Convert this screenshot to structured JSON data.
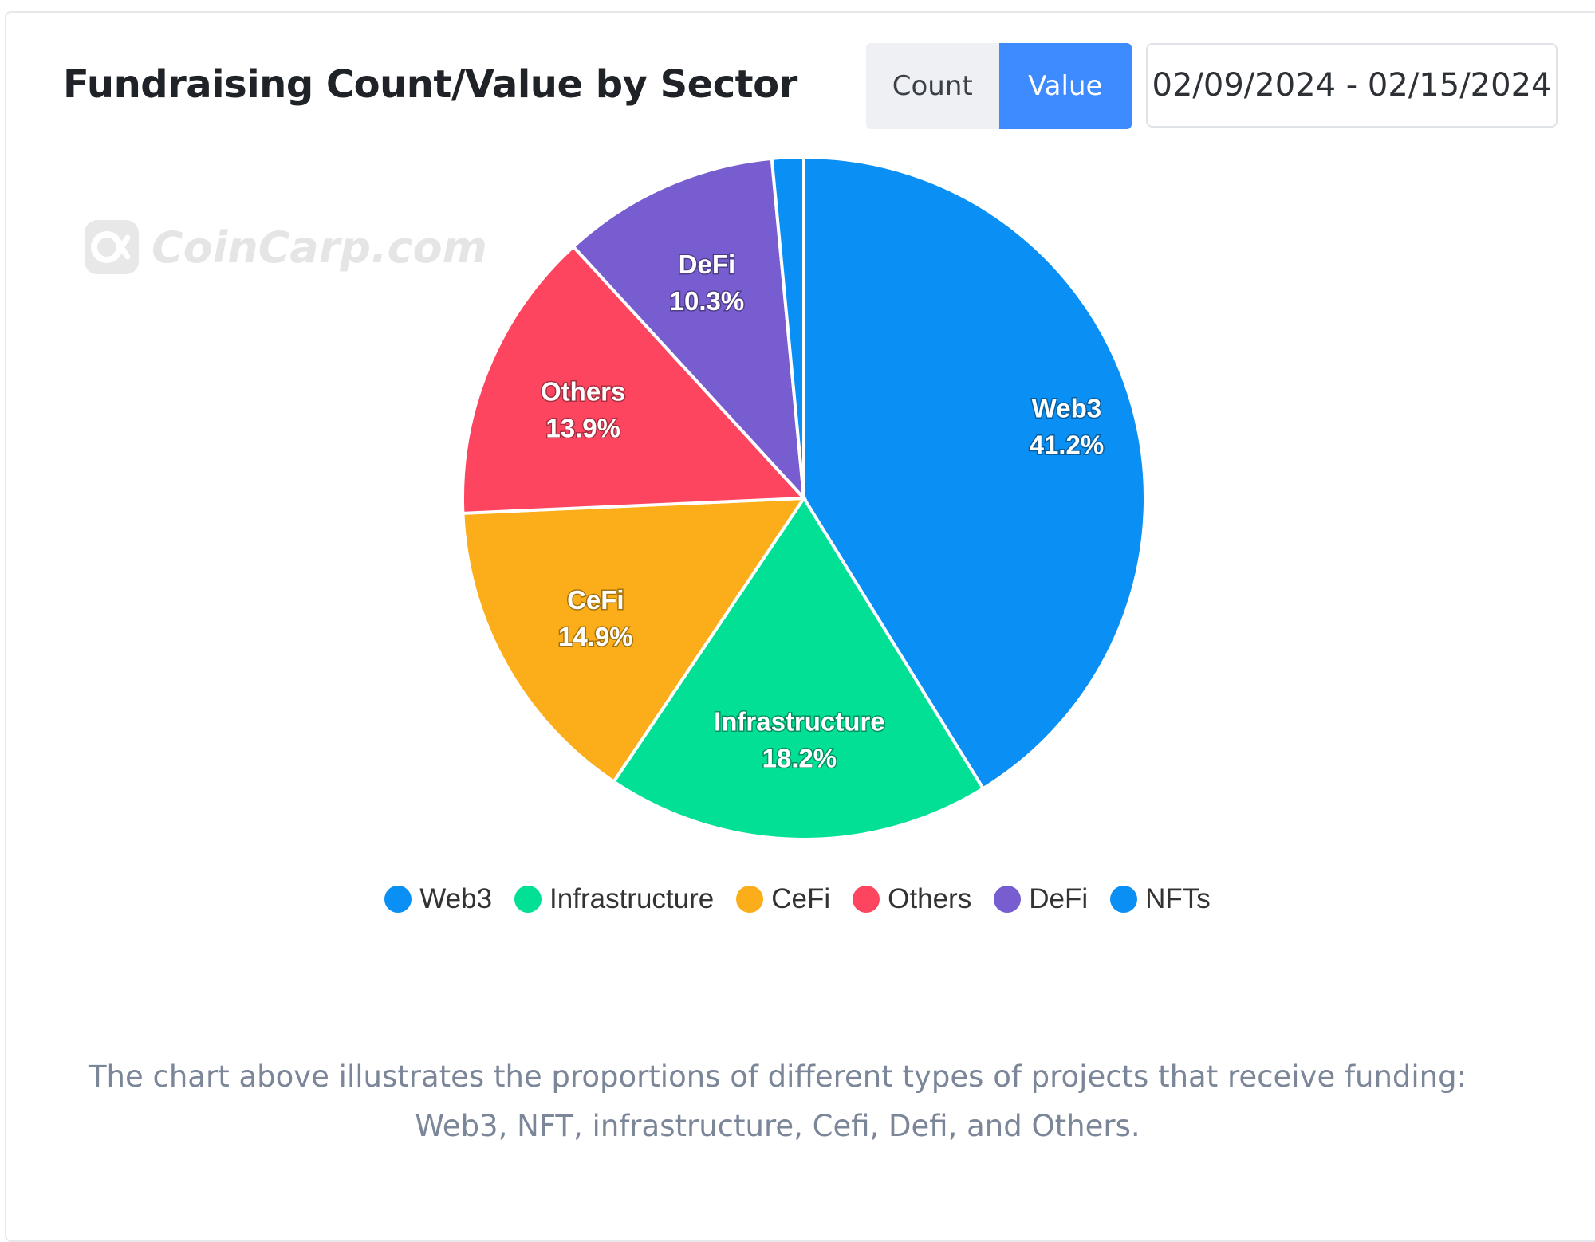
{
  "header": {
    "title": "Fundraising Count/Value by Sector",
    "toggle_count": "Count",
    "toggle_value": "Value",
    "date_range": "02/09/2024 - 02/15/2024"
  },
  "watermark": {
    "text": "CoinCarp.com"
  },
  "caption": "The chart above illustrates the proportions of different types of projects that receive funding: Web3, NFT, infrastructure, Cefi, Defi, and Others.",
  "colors": {
    "Web3": "#0a8ff5",
    "Infrastructure": "#02e096",
    "CeFi": "#fbae1a",
    "Others": "#fe4560",
    "DeFi": "#785dd0",
    "NFTs": "#0a8ff5"
  },
  "chart_data": {
    "type": "pie",
    "title": "Fundraising Count/Value by Sector",
    "mode": "Value",
    "legend_position": "bottom",
    "slices": [
      {
        "label": "Web3",
        "percent": 41.2,
        "display": "41.2%"
      },
      {
        "label": "Infrastructure",
        "percent": 18.2,
        "display": "18.2%"
      },
      {
        "label": "CeFi",
        "percent": 14.9,
        "display": "14.9%"
      },
      {
        "label": "Others",
        "percent": 13.9,
        "display": "13.9%"
      },
      {
        "label": "DeFi",
        "percent": 10.3,
        "display": "10.3%"
      },
      {
        "label": "NFTs",
        "percent": 1.5,
        "display": ""
      }
    ]
  }
}
